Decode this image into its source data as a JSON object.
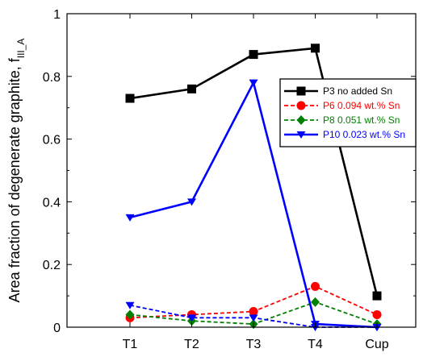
{
  "chart_data": {
    "type": "line",
    "title": "",
    "xlabel": "",
    "ylabel": "Area fraction of degenerate graphite, f",
    "ylabel_subscript": "III_A",
    "categories": [
      "T1",
      "T2",
      "T3",
      "T4",
      "Cup"
    ],
    "ylim": [
      0,
      1
    ],
    "yticks": [
      0,
      0.2,
      0.4,
      0.6,
      0.8,
      1
    ],
    "ytick_labels": [
      "0",
      "0.2",
      "0.4",
      "0.6",
      "0.8",
      "1"
    ],
    "grid": false,
    "legend_position": "top-right",
    "series": [
      {
        "name": "P3 no added Sn",
        "values": [
          0.73,
          0.76,
          0.87,
          0.89,
          0.1
        ],
        "color": "#000000",
        "dash": "solid",
        "marker": "square"
      },
      {
        "name": "P6 0.094 wt.% Sn",
        "values": [
          0.03,
          0.04,
          0.05,
          0.13,
          0.04
        ],
        "color": "#ff0000",
        "dash": "dashed",
        "marker": "circle"
      },
      {
        "name": "P8 0.051 wt.% Sn",
        "values": [
          0.04,
          0.02,
          0.01,
          0.08,
          0.01
        ],
        "color": "#008000",
        "dash": "dashed",
        "marker": "diamond"
      },
      {
        "name": "P10 0.023 wt.% Sn",
        "values": [
          0.35,
          0.4,
          0.78,
          0.01,
          0.0
        ],
        "color": "#0000ff",
        "dash": "solid",
        "marker": "triangle-down"
      },
      {
        "name": "",
        "values": [
          0.07,
          0.03,
          0.03,
          0.0,
          0.0
        ],
        "color": "#0000ff",
        "dash": "dashed",
        "marker": "triangle-down"
      }
    ]
  }
}
